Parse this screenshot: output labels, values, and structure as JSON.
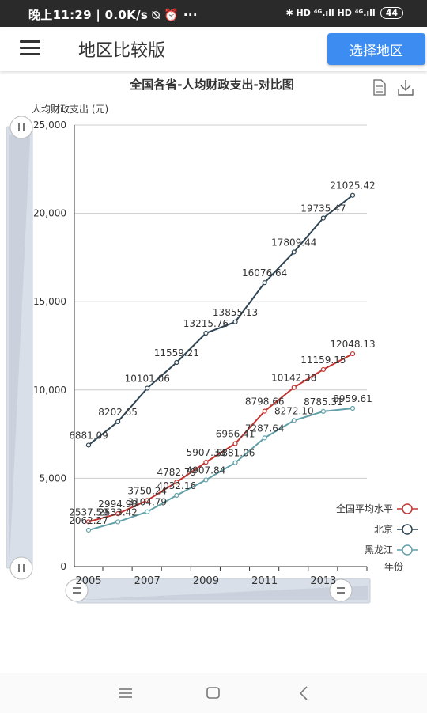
{
  "status_bar": {
    "time": "晚上11:29 | 0.0K/s ⍉ ⏰ ···",
    "indicators": "✱ HD ⁴ᴳ.ıll HD ⁴ᴳ.ıll",
    "battery": "44"
  },
  "header": {
    "title": "地区比较版",
    "select_button": "选择地区"
  },
  "toolbox": {
    "data_view_icon": "document-icon",
    "save_icon": "download-icon"
  },
  "chart_data": {
    "type": "line",
    "title": "全国各省-人均财政支出-对比图",
    "ylabel": "人均财政支出 (元)",
    "xlabel": "年份",
    "ylim": [
      0,
      25000
    ],
    "yticks": [
      0,
      5000,
      10000,
      15000,
      20000,
      25000
    ],
    "ytick_labels": [
      "0",
      "5,000",
      "10,000",
      "15,000",
      "20,000",
      "25,000"
    ],
    "x": [
      2005,
      2006,
      2007,
      2008,
      2009,
      2010,
      2011,
      2012,
      2013,
      2014
    ],
    "xtick_labels": [
      "2005",
      "2007",
      "2009",
      "2011",
      "2013"
    ],
    "legend_position": "right",
    "grid": true,
    "series": [
      {
        "name": "全国平均水平",
        "color": "#c23531",
        "values": [
          2537.59,
          2994.98,
          3750.24,
          4782.79,
          5907.38,
          6966.41,
          8798.66,
          10142.38,
          11159.15,
          12048.13
        ],
        "labels": [
          "2537.59",
          "2994.98",
          "3750.24",
          "4782.79",
          "5907.38",
          "6966.41",
          "8798.66",
          "10142.38",
          "11159.15",
          "12048.13"
        ]
      },
      {
        "name": "北京",
        "color": "#2f4554",
        "values": [
          6881.09,
          8202.65,
          10101.06,
          11559.21,
          13215.76,
          13855.13,
          16076.64,
          17809.44,
          19735.47,
          21025.42
        ],
        "labels": [
          "6881.09",
          "8202.65",
          "10101.06",
          "11559.21",
          "13215.76",
          "13855.13",
          "16076.64",
          "17809.44",
          "19735.47",
          "21025.42"
        ]
      },
      {
        "name": "黑龙江",
        "color": "#61a0a8",
        "values": [
          2062.27,
          2533.42,
          3104.79,
          4032.16,
          4907.84,
          5881.06,
          7287.64,
          8272.1,
          8785.31,
          8959.61
        ],
        "labels": [
          "2062.27",
          "2533.42",
          "3104.79",
          "4032.16",
          "4907.84",
          "5881.06",
          "7287.64",
          "8272.10",
          "8785.31",
          "8959.61"
        ]
      }
    ]
  }
}
